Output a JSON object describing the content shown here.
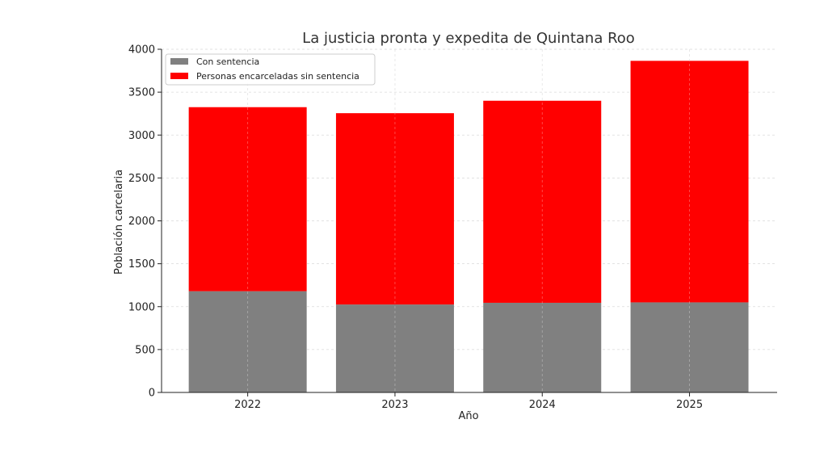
{
  "chart_data": {
    "type": "bar",
    "stacked": true,
    "title": "La justicia pronta y expedita de Quintana Roo",
    "xlabel": "Año",
    "ylabel": "Población carcelaria",
    "categories": [
      "2022",
      "2023",
      "2024",
      "2025"
    ],
    "series": [
      {
        "name": "Con sentencia",
        "color": "#808080",
        "values": [
          1180,
          1025,
          1045,
          1050
        ]
      },
      {
        "name": "Personas encarceladas sin sentencia",
        "color": "#ff0000",
        "values": [
          2145,
          2230,
          2355,
          2815
        ]
      }
    ],
    "ylim": [
      0,
      4000
    ],
    "yticks": [
      0,
      500,
      1000,
      1500,
      2000,
      2500,
      3000,
      3500,
      4000
    ],
    "grid": true,
    "legend_position": "top-left"
  }
}
